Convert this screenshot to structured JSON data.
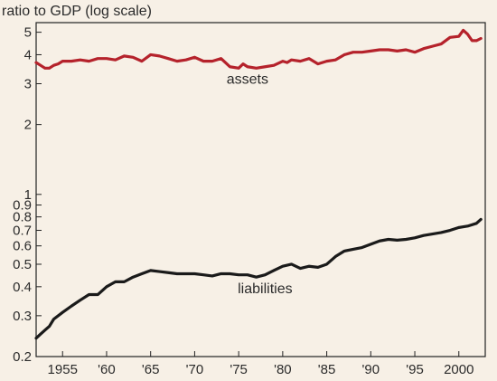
{
  "chart_data": {
    "type": "line",
    "ylabel": "ratio to GDP (log scale)",
    "yscale": "log",
    "ylim": [
      0.2,
      5.5
    ],
    "xlim": [
      1952,
      2003
    ],
    "grid": false,
    "legend": "none",
    "y_ticks": [
      {
        "value": 0.2,
        "label": "0.2"
      },
      {
        "value": 0.3,
        "label": "0.3"
      },
      {
        "value": 0.4,
        "label": "0.4"
      },
      {
        "value": 0.5,
        "label": "0.5"
      },
      {
        "value": 0.6,
        "label": "0.6"
      },
      {
        "value": 0.7,
        "label": "0.7"
      },
      {
        "value": 0.8,
        "label": "0.8"
      },
      {
        "value": 0.9,
        "label": "0.9"
      },
      {
        "value": 1,
        "label": "1"
      },
      {
        "value": 2,
        "label": "2"
      },
      {
        "value": 3,
        "label": "3"
      },
      {
        "value": 4,
        "label": "4"
      },
      {
        "value": 5,
        "label": "5"
      }
    ],
    "x_ticks": [
      {
        "value": 1955,
        "label": "1955"
      },
      {
        "value": 1960,
        "label": "'60"
      },
      {
        "value": 1965,
        "label": "'65"
      },
      {
        "value": 1970,
        "label": "'70"
      },
      {
        "value": 1975,
        "label": "'75"
      },
      {
        "value": 1980,
        "label": "'80"
      },
      {
        "value": 1985,
        "label": "'85"
      },
      {
        "value": 1990,
        "label": "'90"
      },
      {
        "value": 1995,
        "label": "'95"
      },
      {
        "value": 2000,
        "label": "2000"
      }
    ],
    "series": [
      {
        "name": "assets",
        "color": "#b5222b",
        "label_at": {
          "x": 1976,
          "y": 3.0
        },
        "x": [
          1952,
          1952.5,
          1953,
          1953.5,
          1954,
          1954.5,
          1955,
          1956,
          1957,
          1958,
          1959,
          1960,
          1961,
          1962,
          1963,
          1964,
          1965,
          1966,
          1967,
          1968,
          1969,
          1970,
          1971,
          1972,
          1973,
          1974,
          1975,
          1975.5,
          1976,
          1977,
          1978,
          1979,
          1980,
          1980.5,
          1981,
          1982,
          1983,
          1984,
          1985,
          1986,
          1987,
          1988,
          1989,
          1990,
          1991,
          1992,
          1993,
          1994,
          1995,
          1996,
          1997,
          1998,
          1999,
          2000,
          2000.5,
          2001,
          2001.5,
          2002,
          2002.5
        ],
        "values": [
          3.7,
          3.6,
          3.5,
          3.5,
          3.6,
          3.65,
          3.75,
          3.75,
          3.8,
          3.75,
          3.85,
          3.85,
          3.8,
          3.95,
          3.9,
          3.75,
          4.0,
          3.95,
          3.85,
          3.75,
          3.8,
          3.9,
          3.75,
          3.75,
          3.85,
          3.55,
          3.5,
          3.65,
          3.55,
          3.5,
          3.55,
          3.6,
          3.75,
          3.7,
          3.8,
          3.75,
          3.85,
          3.65,
          3.75,
          3.8,
          4.0,
          4.1,
          4.1,
          4.15,
          4.2,
          4.2,
          4.15,
          4.2,
          4.1,
          4.25,
          4.35,
          4.45,
          4.75,
          4.8,
          5.1,
          4.9,
          4.6,
          4.6,
          4.7
        ]
      },
      {
        "name": "liabilities",
        "color": "#1a1a1a",
        "label_at": {
          "x": 1978,
          "y": 0.375
        },
        "x": [
          1952,
          1952.5,
          1953,
          1953.5,
          1954,
          1955,
          1956,
          1957,
          1958,
          1959,
          1960,
          1961,
          1962,
          1963,
          1964,
          1965,
          1966,
          1967,
          1968,
          1969,
          1970,
          1971,
          1972,
          1973,
          1974,
          1975,
          1976,
          1977,
          1978,
          1979,
          1980,
          1981,
          1982,
          1983,
          1984,
          1985,
          1986,
          1987,
          1988,
          1989,
          1990,
          1991,
          1992,
          1993,
          1994,
          1995,
          1996,
          1997,
          1998,
          1999,
          2000,
          2001,
          2002,
          2002.5
        ],
        "values": [
          0.24,
          0.25,
          0.26,
          0.27,
          0.29,
          0.31,
          0.33,
          0.35,
          0.37,
          0.37,
          0.4,
          0.42,
          0.42,
          0.44,
          0.455,
          0.47,
          0.465,
          0.46,
          0.455,
          0.455,
          0.455,
          0.45,
          0.445,
          0.455,
          0.455,
          0.45,
          0.45,
          0.44,
          0.45,
          0.47,
          0.49,
          0.5,
          0.48,
          0.49,
          0.485,
          0.5,
          0.54,
          0.57,
          0.58,
          0.59,
          0.61,
          0.63,
          0.64,
          0.635,
          0.64,
          0.65,
          0.665,
          0.675,
          0.685,
          0.7,
          0.72,
          0.73,
          0.75,
          0.78
        ]
      }
    ]
  }
}
